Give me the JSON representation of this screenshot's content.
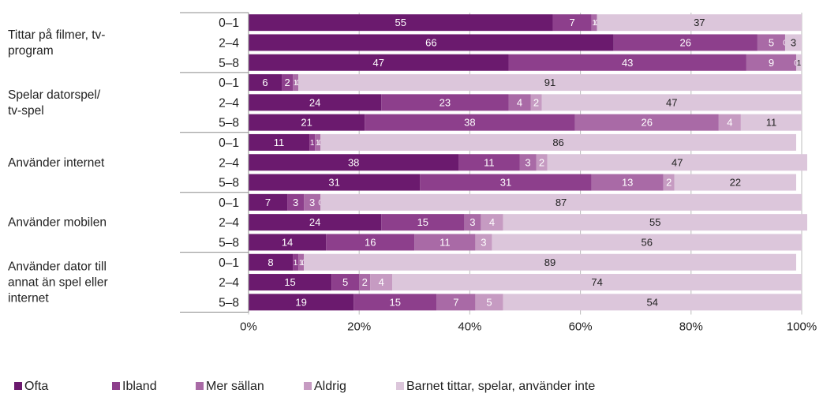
{
  "chart_data": {
    "type": "bar",
    "orientation": "horizontal",
    "stacked": true,
    "xlim": [
      0,
      100
    ],
    "x_ticks": [
      "0%",
      "20%",
      "40%",
      "60%",
      "80%",
      "100%"
    ],
    "groups": [
      {
        "label": "Tittar på filmer, tv-\nprogram",
        "rows": [
          {
            "age": "0–1",
            "values": [
              55,
              7,
              1,
              0,
              37
            ]
          },
          {
            "age": "2–4",
            "values": [
              66,
              26,
              5,
              0,
              3
            ]
          },
          {
            "age": "5–8",
            "values": [
              47,
              43,
              9,
              0,
              1
            ]
          }
        ]
      },
      {
        "label": "Spelar datorspel/\ntv-spel",
        "rows": [
          {
            "age": "0–1",
            "values": [
              6,
              2,
              1,
              0,
              91
            ]
          },
          {
            "age": "2–4",
            "values": [
              24,
              23,
              4,
              2,
              47
            ]
          },
          {
            "age": "5–8",
            "values": [
              21,
              38,
              26,
              4,
              11
            ]
          }
        ]
      },
      {
        "label": "Använder internet",
        "rows": [
          {
            "age": "0–1",
            "values": [
              11,
              1,
              1,
              0,
              86
            ]
          },
          {
            "age": "2–4",
            "values": [
              38,
              11,
              3,
              2,
              47
            ]
          },
          {
            "age": "5–8",
            "values": [
              31,
              31,
              13,
              2,
              22
            ]
          }
        ]
      },
      {
        "label": "Använder mobilen",
        "rows": [
          {
            "age": "0–1",
            "values": [
              7,
              3,
              3,
              0,
              87
            ]
          },
          {
            "age": "2–4",
            "values": [
              24,
              15,
              3,
              4,
              55
            ]
          },
          {
            "age": "5–8",
            "values": [
              14,
              16,
              11,
              3,
              56
            ]
          }
        ]
      },
      {
        "label": "Använder dator till\nannat än spel eller\ninternet",
        "rows": [
          {
            "age": "0–1",
            "values": [
              8,
              1,
              1,
              0,
              89
            ]
          },
          {
            "age": "2–4",
            "values": [
              15,
              5,
              2,
              4,
              74
            ]
          },
          {
            "age": "5–8",
            "values": [
              19,
              15,
              7,
              5,
              54
            ]
          }
        ]
      }
    ],
    "series": [
      {
        "name": "Ofta",
        "color": "#6b1a6e"
      },
      {
        "name": "Ibland",
        "color": "#8d3f8c"
      },
      {
        "name": "Mer sällan",
        "color": "#a96aa6"
      },
      {
        "name": "Aldrig",
        "color": "#c69bc2"
      },
      {
        "name": "Barnet tittar, spelar, använder inte",
        "color": "#dcc6db"
      }
    ],
    "legend_position": "bottom-left"
  }
}
